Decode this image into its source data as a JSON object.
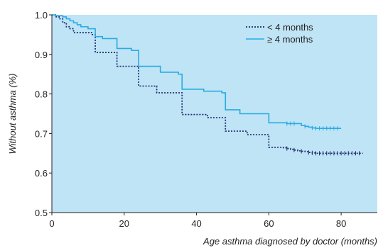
{
  "chart_data": {
    "type": "line",
    "title": "",
    "xlabel": "Age asthma diagnosed by doctor (months)",
    "ylabel": "Without asthma (%)",
    "xlim": [
      0,
      90
    ],
    "ylim": [
      0.5,
      1.0
    ],
    "x_ticks": [
      "0",
      "20",
      "40",
      "60",
      "80"
    ],
    "x_tick_values": [
      0,
      20,
      40,
      60,
      80
    ],
    "y_ticks": [
      "0.5",
      "0.6",
      "0.7",
      "0.8",
      "0.9",
      "1.0"
    ],
    "y_tick_values": [
      0.5,
      0.6,
      0.7,
      0.8,
      0.9,
      1.0
    ],
    "grid": false,
    "background_color": "#bfe4f6",
    "legend_position": "top-right",
    "series": [
      {
        "name": "< 4 months",
        "line_style": "dotted",
        "color": "#1f2a6b",
        "step": true,
        "x": [
          0,
          1,
          2,
          3,
          4,
          5,
          6,
          11,
          12,
          18,
          24,
          29,
          36,
          43,
          48,
          54,
          60,
          64,
          65,
          66,
          67,
          68,
          69,
          70,
          71,
          72,
          73,
          74,
          75,
          76,
          77,
          78,
          79,
          80,
          81,
          82,
          83,
          84,
          85,
          86
        ],
        "y": [
          1.0,
          0.995,
          0.99,
          0.98,
          0.97,
          0.965,
          0.955,
          0.95,
          0.905,
          0.87,
          0.82,
          0.803,
          0.748,
          0.74,
          0.706,
          0.697,
          0.665,
          0.664,
          0.662,
          0.66,
          0.658,
          0.656,
          0.655,
          0.654,
          0.652,
          0.651,
          0.65,
          0.65,
          0.65,
          0.65,
          0.65,
          0.65,
          0.65,
          0.65,
          0.65,
          0.65,
          0.65,
          0.65,
          0.65,
          0.65
        ],
        "censor_x": [
          65,
          67,
          69,
          71,
          72,
          73,
          74,
          75,
          76,
          77,
          78,
          79,
          80,
          81,
          82,
          83,
          84,
          85
        ]
      },
      {
        "name": "≥ 4 months",
        "line_style": "solid",
        "color": "#29abe2",
        "step": true,
        "x": [
          0,
          1,
          3,
          4,
          5,
          6,
          7,
          8,
          10,
          12,
          14,
          18,
          22,
          24,
          30,
          35,
          36,
          42,
          47,
          48,
          52,
          60,
          65,
          69,
          70,
          71,
          72,
          73,
          74,
          75,
          76,
          77,
          78,
          79,
          80
        ],
        "y": [
          1.0,
          0.998,
          0.995,
          0.99,
          0.985,
          0.98,
          0.975,
          0.97,
          0.965,
          0.945,
          0.94,
          0.915,
          0.91,
          0.87,
          0.855,
          0.85,
          0.812,
          0.807,
          0.803,
          0.76,
          0.75,
          0.727,
          0.725,
          0.72,
          0.718,
          0.716,
          0.714,
          0.713,
          0.713,
          0.713,
          0.713,
          0.713,
          0.713,
          0.713,
          0.713
        ],
        "censor_x": [
          65,
          66,
          67,
          70,
          72,
          73,
          74,
          75,
          76,
          77,
          78,
          79
        ]
      }
    ]
  }
}
